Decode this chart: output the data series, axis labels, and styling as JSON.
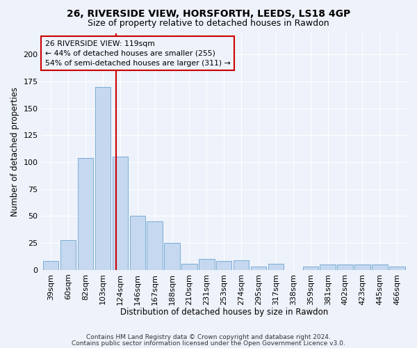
{
  "title1": "26, RIVERSIDE VIEW, HORSFORTH, LEEDS, LS18 4GP",
  "title2": "Size of property relative to detached houses in Rawdon",
  "xlabel": "Distribution of detached houses by size in Rawdon",
  "ylabel": "Number of detached properties",
  "bar_labels": [
    "39sqm",
    "60sqm",
    "82sqm",
    "103sqm",
    "124sqm",
    "146sqm",
    "167sqm",
    "188sqm",
    "210sqm",
    "231sqm",
    "253sqm",
    "274sqm",
    "295sqm",
    "317sqm",
    "338sqm",
    "359sqm",
    "381sqm",
    "402sqm",
    "423sqm",
    "445sqm",
    "466sqm"
  ],
  "bar_values": [
    8,
    28,
    104,
    170,
    105,
    50,
    45,
    25,
    6,
    10,
    8,
    9,
    3,
    6,
    0,
    3,
    5,
    5,
    5,
    5,
    3
  ],
  "bar_color": "#c5d8f0",
  "bar_edge_color": "#7aadd4",
  "vline_color": "#cc0000",
  "annotation_box_text": "26 RIVERSIDE VIEW: 119sqm\n← 44% of detached houses are smaller (255)\n54% of semi-detached houses are larger (311) →",
  "annotation_box_edge_color": "#cc0000",
  "footer1": "Contains HM Land Registry data © Crown copyright and database right 2024.",
  "footer2": "Contains public sector information licensed under the Open Government Licence v3.0.",
  "ylim": [
    0,
    220
  ],
  "background_color": "#eef2fa",
  "grid_color": "#ffffff"
}
